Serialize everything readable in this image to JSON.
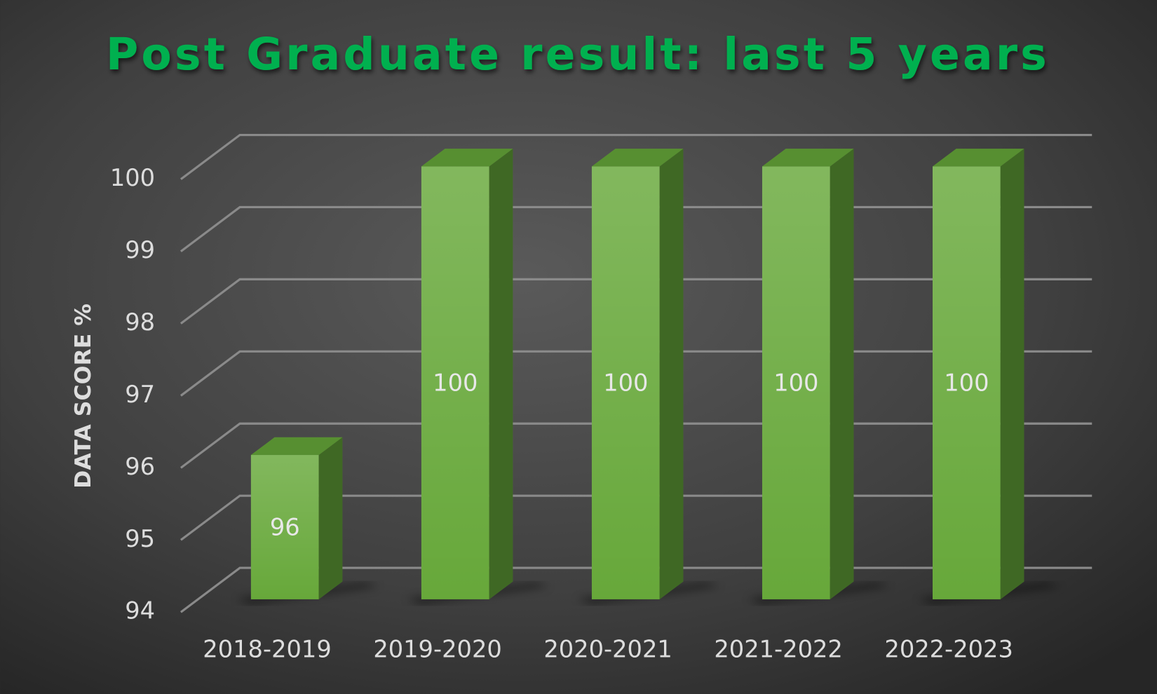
{
  "chart_data": {
    "type": "bar3d",
    "title": "Post Graduate result: last 5 years",
    "ylabel": "DATA SCORE %",
    "categories": [
      "2018-2019",
      "2019-2020",
      "2020-2021",
      "2021-2022",
      "2022-2023"
    ],
    "values": [
      96,
      100,
      100,
      100,
      100
    ],
    "color": "#67a83a",
    "ylim": [
      94,
      100
    ],
    "yticks": [
      94,
      95,
      96,
      97,
      98,
      99,
      100
    ],
    "grid": true
  }
}
